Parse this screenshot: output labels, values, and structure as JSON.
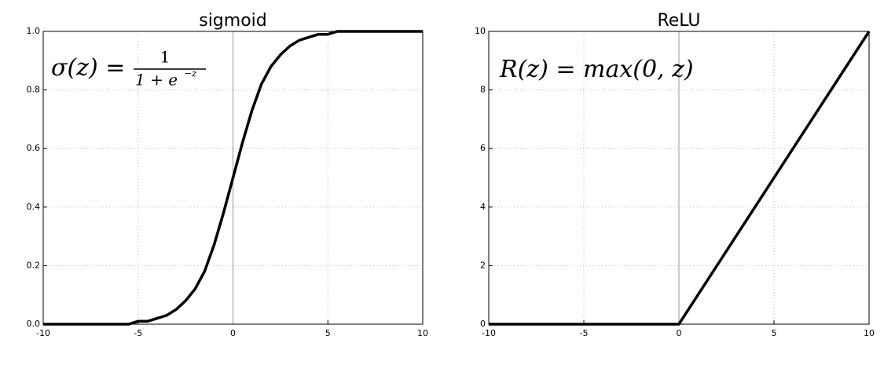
{
  "chart_data": [
    {
      "type": "line",
      "title": "sigmoid",
      "annotation": {
        "lhs": "σ(z) =",
        "numerator": "1",
        "denominator": "1 + e",
        "exponent": "−z"
      },
      "x": [
        -10,
        -9.5,
        -9,
        -8.5,
        -8,
        -7.5,
        -7,
        -6.5,
        -6,
        -5.5,
        -5,
        -4.5,
        -4,
        -3.5,
        -3,
        -2.5,
        -2,
        -1.5,
        -1,
        -0.5,
        0,
        0.5,
        1,
        1.5,
        2,
        2.5,
        3,
        3.5,
        4,
        4.5,
        5,
        5.5,
        6,
        6.5,
        7,
        7.5,
        8,
        8.5,
        9,
        9.5,
        10
      ],
      "series": [
        {
          "color": "#000000",
          "values": [
            0,
            0,
            0,
            0,
            0,
            0,
            0,
            0,
            0,
            0,
            0.01,
            0.01,
            0.02,
            0.03,
            0.05,
            0.08,
            0.12,
            0.18,
            0.27,
            0.38,
            0.5,
            0.62,
            0.73,
            0.82,
            0.88,
            0.92,
            0.95,
            0.97,
            0.98,
            0.99,
            0.99,
            1,
            1,
            1,
            1,
            1,
            1,
            1,
            1,
            1,
            1
          ]
        }
      ],
      "xlim": [
        -10,
        10
      ],
      "xticks": [
        -10,
        -5,
        0,
        5,
        10
      ],
      "ylim": [
        0,
        1
      ],
      "yticks": [
        {
          "value": 0,
          "label": "0.0"
        },
        0.2,
        0.4,
        0.6,
        0.8,
        {
          "value": 1,
          "label": "1.0"
        }
      ],
      "vline": 0,
      "grid": true
    },
    {
      "type": "line",
      "title": "ReLU",
      "annotation": {
        "lhs": "R(z) = max(0,  z)"
      },
      "x": [
        -10,
        0,
        10
      ],
      "series": [
        {
          "color": "#000000",
          "values": [
            0,
            0,
            10
          ]
        }
      ],
      "xlim": [
        -10,
        10
      ],
      "xticks": [
        -10,
        -5,
        0,
        5,
        10
      ],
      "ylim": [
        0,
        10
      ],
      "yticks": [
        0,
        2,
        4,
        6,
        8,
        10
      ],
      "vline": 0,
      "grid": true
    }
  ]
}
